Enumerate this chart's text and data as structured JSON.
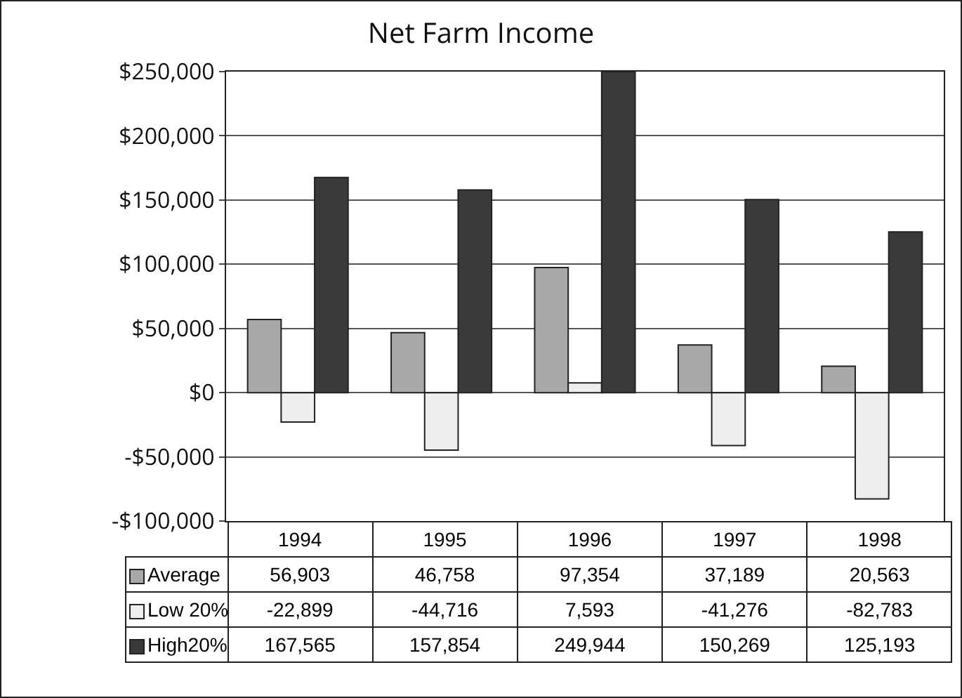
{
  "chart_data": {
    "type": "bar",
    "title": "Net Farm Income",
    "categories": [
      "1994",
      "1995",
      "1996",
      "1997",
      "1998"
    ],
    "series": [
      {
        "name": "Average",
        "color": "#a8a8a8",
        "values": [
          56903,
          46758,
          97354,
          37189,
          20563
        ],
        "value_labels": [
          "56,903",
          "46,758",
          "97,354",
          "37,189",
          "20,563"
        ]
      },
      {
        "name": "Low 20%",
        "color": "#eeeeee",
        "values": [
          -22899,
          -44716,
          7593,
          -41276,
          -82783
        ],
        "value_labels": [
          "-22,899",
          "-44,716",
          "7,593",
          "-41,276",
          "-82,783"
        ]
      },
      {
        "name": "High20%",
        "color": "#3a3a3a",
        "values": [
          167565,
          157854,
          249944,
          150269,
          125193
        ],
        "value_labels": [
          "167,565",
          "157,854",
          "249,944",
          "150,269",
          "125,193"
        ]
      }
    ],
    "ylim": [
      -100000,
      250000
    ],
    "yticks": [
      {
        "value": -100000,
        "label": "-$100,000"
      },
      {
        "value": -50000,
        "label": "-$50,000"
      },
      {
        "value": 0,
        "label": "$0"
      },
      {
        "value": 50000,
        "label": "$50,000"
      },
      {
        "value": 100000,
        "label": "$100,000"
      },
      {
        "value": 150000,
        "label": "$150,000"
      },
      {
        "value": 200000,
        "label": "$200,000"
      },
      {
        "value": 250000,
        "label": "$250,000"
      }
    ],
    "grid": "y",
    "legend": "bottom"
  }
}
